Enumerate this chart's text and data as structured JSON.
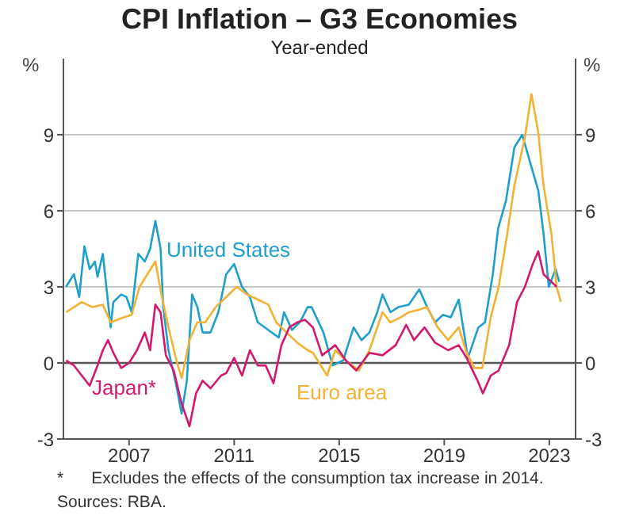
{
  "chart_data": {
    "type": "line",
    "title": "CPI Inflation – G3 Economies",
    "subtitle": "Year-ended",
    "ylabel": "%",
    "y2label": "%",
    "xlim": [
      2005,
      2024.5
    ],
    "xticks": [
      {
        "value": 2007.5,
        "label": "2007"
      },
      {
        "value": 2011.5,
        "label": "2011"
      },
      {
        "value": 2015.5,
        "label": "2015"
      },
      {
        "value": 2019.5,
        "label": "2019"
      },
      {
        "value": 2023.5,
        "label": "2023"
      }
    ],
    "ylim": [
      -3,
      12
    ],
    "yticks": [
      {
        "value": -3,
        "label": "-3"
      },
      0,
      3,
      6,
      9
    ],
    "y2lim": [
      -3,
      12
    ],
    "y2ticks": [
      {
        "value": -3,
        "label": "-3"
      },
      0,
      3,
      6,
      9
    ],
    "grid": "y",
    "marker": "none",
    "line_style": "solid",
    "ref_lines": [
      {
        "axis": "y",
        "value": 0,
        "color": "#555555"
      }
    ],
    "series": [
      {
        "name": "United States",
        "color": "#1f9fcc",
        "x": [
          2005.1,
          2005.4,
          2005.6,
          2005.8,
          2006.0,
          2006.2,
          2006.3,
          2006.5,
          2006.8,
          2006.9,
          2007.2,
          2007.4,
          2007.6,
          2007.85,
          2008.1,
          2008.3,
          2008.5,
          2008.7,
          2008.8,
          2009.0,
          2009.3,
          2009.5,
          2009.7,
          2009.9,
          2010.1,
          2010.3,
          2010.6,
          2010.9,
          2011.2,
          2011.5,
          2011.8,
          2012.1,
          2012.4,
          2013.2,
          2013.4,
          2013.7,
          2014.0,
          2014.3,
          2014.45,
          2014.9,
          2015.25,
          2015.65,
          2016.05,
          2016.35,
          2016.65,
          2016.95,
          2017.15,
          2017.45,
          2017.75,
          2018.15,
          2018.55,
          2018.85,
          2019.15,
          2019.45,
          2019.75,
          2020.05,
          2020.25,
          2020.4,
          2020.8,
          2021.05,
          2021.35,
          2021.55,
          2021.85,
          2022.17,
          2022.47,
          2022.77,
          2023.08,
          2023.28,
          2023.48,
          2023.74,
          2023.88
        ],
        "values": [
          3.0,
          3.5,
          2.6,
          4.6,
          3.7,
          4.0,
          3.4,
          4.3,
          1.4,
          2.4,
          2.7,
          2.6,
          2.0,
          4.3,
          4.0,
          4.5,
          5.6,
          4.5,
          2.2,
          0.5,
          -0.9,
          -2.0,
          -0.7,
          2.7,
          2.2,
          1.2,
          1.2,
          2.0,
          3.5,
          3.9,
          3.0,
          2.6,
          1.6,
          1.0,
          2.0,
          1.3,
          1.6,
          2.2,
          2.2,
          1.2,
          -0.1,
          0.1,
          1.4,
          0.9,
          1.2,
          2.0,
          2.7,
          2.0,
          2.2,
          2.3,
          2.9,
          2.2,
          1.6,
          1.9,
          1.8,
          2.5,
          1.2,
          0.2,
          1.4,
          1.6,
          3.5,
          5.3,
          6.4,
          8.5,
          9.0,
          7.9,
          6.8,
          5.1,
          3.0,
          3.7,
          3.2
        ]
      },
      {
        "name": "Euro area",
        "color": "#f2b233",
        "x": [
          2005.1,
          2005.4,
          2005.7,
          2006.1,
          2006.5,
          2006.8,
          2007.3,
          2007.6,
          2007.9,
          2008.2,
          2008.5,
          2008.75,
          2009.0,
          2009.3,
          2009.5,
          2009.8,
          2010.1,
          2010.4,
          2010.8,
          2011.2,
          2011.6,
          2012.0,
          2012.4,
          2012.8,
          2013.1,
          2013.5,
          2013.9,
          2014.3,
          2014.5,
          2015.04,
          2015.35,
          2015.75,
          2016.25,
          2016.65,
          2017.15,
          2017.45,
          2017.85,
          2018.15,
          2018.55,
          2018.85,
          2019.25,
          2019.65,
          2020.05,
          2020.35,
          2020.65,
          2020.95,
          2021.27,
          2021.57,
          2021.87,
          2022.17,
          2022.57,
          2022.82,
          2023.08,
          2023.28,
          2023.58,
          2023.78,
          2023.94
        ],
        "values": [
          2.0,
          2.2,
          2.4,
          2.2,
          2.3,
          1.6,
          1.8,
          1.9,
          3.0,
          3.5,
          4.0,
          2.6,
          1.4,
          0.1,
          -0.6,
          0.9,
          1.6,
          1.6,
          2.2,
          2.6,
          3.0,
          2.7,
          2.5,
          2.3,
          1.6,
          1.2,
          0.8,
          0.5,
          0.4,
          -0.5,
          0.5,
          0.1,
          -0.3,
          0.5,
          2.0,
          1.6,
          1.8,
          2.0,
          2.1,
          2.2,
          1.4,
          0.9,
          1.4,
          0.4,
          -0.2,
          -0.2,
          1.8,
          3.0,
          4.9,
          7.0,
          8.9,
          10.6,
          9.1,
          7.0,
          5.1,
          3.0,
          2.4
        ]
      },
      {
        "name": "Japan*",
        "color": "#d3186f",
        "x": [
          2005.1,
          2005.4,
          2005.7,
          2006.0,
          2006.3,
          2006.5,
          2006.7,
          2006.9,
          2007.2,
          2007.5,
          2007.8,
          2008.1,
          2008.3,
          2008.5,
          2008.7,
          2008.9,
          2009.2,
          2009.5,
          2009.8,
          2010.05,
          2010.3,
          2010.6,
          2011.0,
          2011.2,
          2011.5,
          2011.8,
          2012.1,
          2012.4,
          2012.7,
          2013.0,
          2013.3,
          2013.6,
          2013.9,
          2014.2,
          2014.5,
          2014.85,
          2015.35,
          2015.75,
          2016.15,
          2016.65,
          2017.15,
          2017.65,
          2018.05,
          2018.35,
          2018.75,
          2019.15,
          2019.65,
          2020.05,
          2020.35,
          2020.77,
          2020.97,
          2021.27,
          2021.57,
          2021.97,
          2022.27,
          2022.57,
          2022.87,
          2023.08,
          2023.28,
          2023.58,
          2023.78
        ],
        "values": [
          0.1,
          -0.1,
          -0.5,
          -0.9,
          -0.1,
          0.5,
          0.9,
          0.4,
          -0.2,
          0.0,
          0.5,
          1.2,
          0.5,
          2.3,
          2.0,
          0.3,
          -0.3,
          -1.6,
          -2.5,
          -1.2,
          -0.7,
          -1.0,
          -0.5,
          -0.4,
          0.2,
          -0.5,
          0.5,
          -0.1,
          -0.1,
          -0.8,
          0.7,
          1.4,
          1.6,
          1.7,
          1.4,
          0.3,
          0.7,
          0.1,
          -0.3,
          0.4,
          0.3,
          0.7,
          1.5,
          0.9,
          1.4,
          0.8,
          0.5,
          0.7,
          0.2,
          -0.7,
          -1.2,
          -0.5,
          -0.3,
          0.7,
          2.4,
          3.0,
          3.9,
          4.4,
          3.5,
          3.2,
          3.0
        ]
      }
    ],
    "annotations": [
      "*      Excludes the effects of the consumption tax increase in 2014.",
      "Sources: RBA."
    ]
  }
}
